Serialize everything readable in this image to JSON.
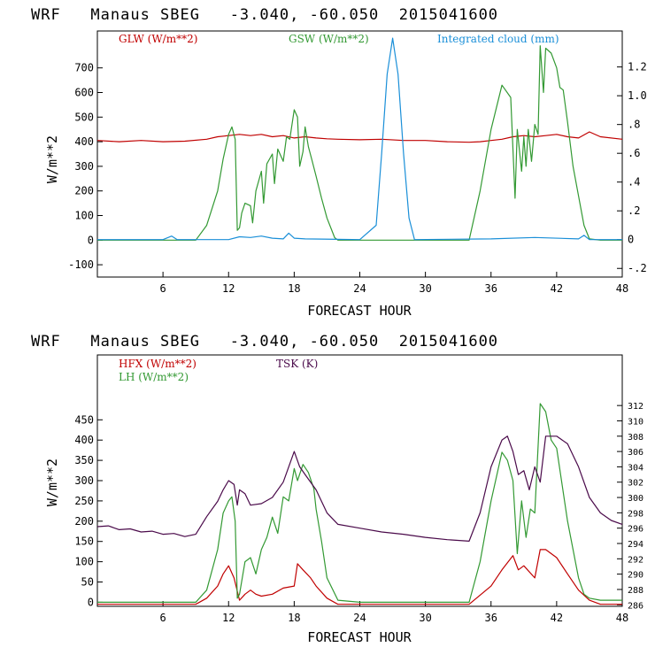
{
  "chart_data": [
    {
      "type": "line",
      "title": "WRF   Manaus SBEG   -3.040, -60.050  2015041600",
      "xlabel": "FORECAST HOUR",
      "ylabel": "W/m**2",
      "xlim": [
        0,
        48
      ],
      "xticks": [
        6,
        12,
        18,
        24,
        30,
        36,
        42,
        48
      ],
      "ylim": [
        -150,
        850
      ],
      "yticks": [
        -100,
        0,
        100,
        200,
        300,
        400,
        500,
        600,
        700
      ],
      "y2lim": [
        -0.26,
        1.45
      ],
      "y2ticks": [
        "-.2",
        "0",
        ".2",
        ".4",
        ".6",
        ".8",
        "1.0",
        "1.2"
      ],
      "y2tick_values": [
        -0.2,
        0,
        0.2,
        0.4,
        0.6,
        0.8,
        1.0,
        1.2
      ],
      "series": [
        {
          "name": "GLW (W/m**2)",
          "axis": "left",
          "color": "#c00000",
          "x": [
            0,
            2,
            4,
            6,
            8,
            10,
            11,
            12,
            13,
            14,
            15,
            16,
            17,
            18,
            19,
            20,
            21,
            22,
            24,
            26,
            28,
            30,
            32,
            34,
            35,
            36,
            37,
            38,
            39,
            40,
            41,
            42,
            43,
            44,
            45,
            46,
            48
          ],
          "y": [
            405,
            400,
            405,
            400,
            402,
            410,
            420,
            425,
            430,
            425,
            430,
            420,
            425,
            415,
            420,
            415,
            412,
            410,
            408,
            410,
            405,
            405,
            400,
            398,
            400,
            405,
            410,
            420,
            425,
            420,
            425,
            430,
            420,
            415,
            440,
            420,
            410
          ]
        },
        {
          "name": "GSW (W/m**2)",
          "axis": "left",
          "color": "#339933",
          "x": [
            0,
            9,
            10,
            11,
            11.5,
            12,
            12.3,
            12.6,
            12.8,
            13,
            13.2,
            13.5,
            14,
            14.2,
            14.5,
            15,
            15.2,
            15.5,
            16,
            16.2,
            16.5,
            17,
            17.3,
            17.6,
            18,
            18.3,
            18.5,
            18.8,
            19,
            19.3,
            19.6,
            20,
            20.5,
            21,
            21.7,
            22,
            34,
            35,
            36,
            37,
            37.8,
            38.2,
            38.4,
            38.8,
            39,
            39.2,
            39.4,
            39.7,
            40,
            40.3,
            40.5,
            40.8,
            41,
            41.5,
            42,
            42.3,
            42.6,
            43,
            43.5,
            44,
            44.5,
            45,
            46,
            48
          ],
          "y": [
            0,
            0,
            60,
            200,
            330,
            430,
            460,
            410,
            40,
            50,
            110,
            150,
            140,
            70,
            200,
            280,
            150,
            310,
            350,
            230,
            370,
            320,
            420,
            410,
            530,
            500,
            300,
            360,
            460,
            380,
            330,
            260,
            170,
            90,
            10,
            0,
            0,
            200,
            450,
            630,
            580,
            170,
            450,
            280,
            420,
            300,
            450,
            320,
            470,
            430,
            790,
            600,
            780,
            760,
            700,
            620,
            610,
            480,
            300,
            180,
            60,
            5,
            0,
            0
          ]
        },
        {
          "name": "Integrated cloud (mm)",
          "axis": "right",
          "color": "#1a8fd8",
          "x": [
            0,
            6,
            6.8,
            7.3,
            8,
            12,
            13,
            14,
            15,
            16,
            17,
            17.5,
            18,
            19,
            24,
            25.5,
            26,
            26.5,
            27,
            27.5,
            28,
            28.5,
            29,
            36,
            40,
            44,
            44.5,
            45,
            48
          ],
          "y": [
            0,
            0,
            0.025,
            0,
            0,
            0,
            0.02,
            0.015,
            0.025,
            0.01,
            0.005,
            0.045,
            0.01,
            0.005,
            0,
            0.1,
            0.6,
            1.15,
            1.4,
            1.15,
            0.6,
            0.15,
            0,
            0.005,
            0.015,
            0.005,
            0.03,
            0,
            0
          ]
        }
      ]
    },
    {
      "type": "line",
      "title": "WRF   Manaus SBEG   -3.040, -60.050  2015041600",
      "xlabel": "FORECAST HOUR",
      "ylabel": "W/m**2",
      "xlim": [
        0,
        48
      ],
      "xticks": [
        6,
        12,
        18,
        24,
        30,
        36,
        42,
        48
      ],
      "ylim": [
        -10,
        610
      ],
      "yticks": [
        0,
        50,
        100,
        150,
        200,
        250,
        300,
        350,
        400,
        450
      ],
      "y2lim": [
        285.8,
        318.6
      ],
      "y2ticks": [
        "286",
        "288",
        "290",
        "292",
        "294",
        "296",
        "298",
        "300",
        "302",
        "304",
        "306",
        "308",
        "310",
        "312"
      ],
      "y2tick_values": [
        286,
        288,
        290,
        292,
        294,
        296,
        298,
        300,
        302,
        304,
        306,
        308,
        310,
        312
      ],
      "series": [
        {
          "name": "HFX (W/m**2)",
          "axis": "left",
          "color": "#c00000",
          "x": [
            0,
            9,
            10,
            11,
            11.5,
            12,
            12.5,
            13,
            13.5,
            14,
            14.5,
            15,
            16,
            17,
            18,
            18.3,
            18.8,
            19.5,
            20,
            21,
            22,
            24,
            30,
            34,
            36,
            37,
            38,
            38.5,
            39,
            40,
            40.5,
            41,
            42,
            43,
            44,
            45,
            46,
            48
          ],
          "y": [
            -5,
            -5,
            10,
            40,
            70,
            90,
            60,
            5,
            20,
            30,
            20,
            15,
            20,
            35,
            40,
            95,
            80,
            60,
            40,
            10,
            -5,
            -5,
            -5,
            -5,
            40,
            80,
            115,
            80,
            90,
            60,
            130,
            130,
            110,
            70,
            30,
            5,
            -5,
            -5
          ]
        },
        {
          "name": "LH (W/m**2)",
          "axis": "left",
          "color": "#339933",
          "x": [
            0,
            9,
            10,
            11,
            11.5,
            12,
            12.3,
            12.6,
            12.8,
            13,
            13.5,
            14,
            14.5,
            15,
            15.5,
            16,
            16.5,
            17,
            17.5,
            18,
            18.3,
            18.8,
            19.3,
            19.8,
            20,
            20.5,
            21,
            22,
            24,
            30,
            34,
            35,
            36,
            37,
            37.5,
            38,
            38.4,
            38.8,
            39.2,
            39.6,
            40,
            40.5,
            41,
            41.5,
            42,
            43,
            44,
            44.5,
            45,
            46,
            48
          ],
          "y": [
            0,
            0,
            30,
            130,
            220,
            250,
            260,
            200,
            10,
            20,
            100,
            110,
            70,
            130,
            160,
            210,
            170,
            260,
            250,
            330,
            300,
            340,
            320,
            280,
            230,
            150,
            60,
            5,
            0,
            0,
            0,
            100,
            250,
            370,
            350,
            300,
            120,
            250,
            160,
            230,
            220,
            490,
            470,
            400,
            380,
            200,
            60,
            20,
            10,
            5,
            5
          ]
        },
        {
          "name": "TSK (K)",
          "axis": "right",
          "color": "#4a0a4a",
          "x": [
            0,
            1,
            2,
            3,
            4,
            5,
            6,
            7,
            8,
            9,
            10,
            11,
            11.5,
            12,
            12.5,
            12.8,
            13,
            13.5,
            14,
            15,
            16,
            17,
            17.5,
            18,
            18.5,
            19,
            20,
            21,
            22,
            24,
            26,
            28,
            30,
            32,
            34,
            35,
            36,
            37,
            37.5,
            38,
            38.5,
            39,
            39.5,
            40,
            40.5,
            41,
            42,
            43,
            44,
            45,
            46,
            47,
            48
          ],
          "y": [
            296.2,
            296.3,
            295.8,
            295.9,
            295.5,
            295.6,
            295.2,
            295.3,
            294.9,
            295.2,
            297.5,
            299.5,
            301,
            302.2,
            301.7,
            299,
            301,
            300.5,
            299,
            299.2,
            300,
            302,
            304,
            306,
            304,
            303,
            301,
            298,
            296.5,
            296,
            295.5,
            295.2,
            294.8,
            294.5,
            294.3,
            298,
            304,
            307.5,
            308,
            306,
            303,
            303.5,
            301,
            304,
            302,
            308,
            308,
            307,
            304,
            300,
            298,
            297,
            296.5
          ]
        }
      ]
    }
  ]
}
